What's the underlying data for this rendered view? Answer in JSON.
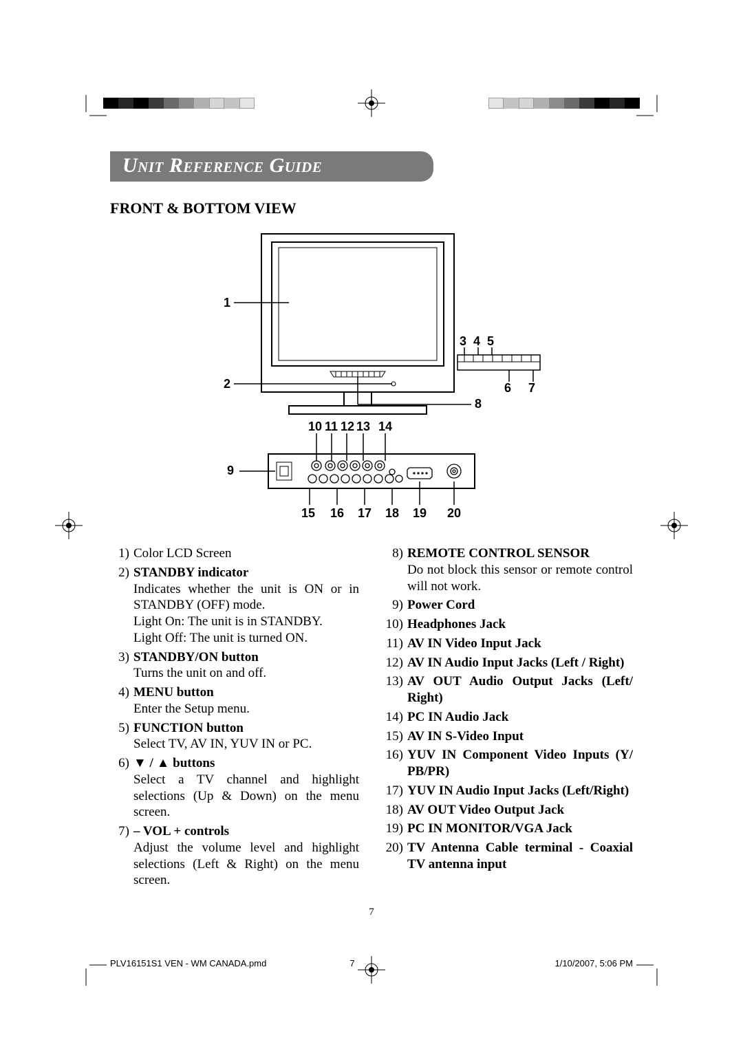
{
  "header": {
    "title": "Unit Reference Guide"
  },
  "subheading": "FRONT & BOTTOM VIEW",
  "page_number": "7",
  "footer": {
    "filename": "PLV16151S1 VEN - WM CANADA.pmd",
    "page": "7",
    "date": "1/10/2007, 5:06 PM"
  },
  "colors": {
    "header_bg": "#7a7a7a",
    "header_text": "#ffffff",
    "bar": [
      "#000000",
      "#d83b3b",
      "#e8e84a",
      "#4fd84f",
      "#3fd8d8",
      "#3b3bd8",
      "#d83bd8",
      "#ffffff",
      "#000000",
      "#d83b3b",
      "#e8e84a",
      "#4fd84f",
      "#3fd8d8",
      "#3b3bd8",
      "#d83bd8",
      "#ffffff"
    ]
  },
  "diagram": {
    "top_labels": [
      "1",
      "2",
      "3",
      "4",
      "5",
      "6",
      "7",
      "8",
      "9",
      "10",
      "11",
      "12",
      "13",
      "14",
      "15",
      "16",
      "17",
      "18",
      "19",
      "20"
    ]
  },
  "left_items": [
    {
      "n": "1)",
      "title": "",
      "text": "Color LCD Screen"
    },
    {
      "n": "2)",
      "title": "STANDBY indicator",
      "text": "Indicates whether the unit is ON or in STANDBY (OFF) mode.\nLight On: The unit is in STANDBY.\nLight Off: The unit is turned ON."
    },
    {
      "n": "3)",
      "title": "STANDBY/ON button",
      "text": "Turns the unit on and off."
    },
    {
      "n": "4)",
      "title": "MENU button",
      "text": "Enter the Setup menu."
    },
    {
      "n": "5)",
      "title": "FUNCTION button",
      "text": "Select TV, AV IN, YUV IN or PC."
    },
    {
      "n": "6)",
      "title": "▼ / ▲  buttons",
      "text": "Select a TV channel and highlight selections (Up & Down) on the menu screen."
    },
    {
      "n": "7)",
      "title": "– VOL + controls",
      "text": "Adjust the volume level and highlight selections (Left & Right) on the menu screen."
    }
  ],
  "right_items": [
    {
      "n": "8)",
      "title": "REMOTE CONTROL SENSOR",
      "text": "Do not block this sensor or remote control will not work."
    },
    {
      "n": "9)",
      "title": "Power Cord",
      "text": ""
    },
    {
      "n": "10)",
      "title": "Headphones Jack",
      "text": ""
    },
    {
      "n": "11)",
      "title": "AV IN Video Input Jack",
      "text": ""
    },
    {
      "n": "12)",
      "title": "AV IN Audio Input Jacks (Left / Right)",
      "text": ""
    },
    {
      "n": "13)",
      "title": "AV OUT Audio Output Jacks (Left/ Right)",
      "text": ""
    },
    {
      "n": "14)",
      "title": "PC IN Audio Jack",
      "text": ""
    },
    {
      "n": "15)",
      "title": "AV IN S-Video Input",
      "text": ""
    },
    {
      "n": "16)",
      "title": "YUV IN Component Video Inputs  (Y/ PB/PR)",
      "text": ""
    },
    {
      "n": "17)",
      "title": "YUV IN Audio Input Jacks (Left/Right)",
      "text": ""
    },
    {
      "n": "18)",
      "title": "AV OUT Video Output Jack",
      "text": ""
    },
    {
      "n": "19)",
      "title": "PC IN MONITOR/VGA Jack",
      "text": ""
    },
    {
      "n": "20)",
      "title": "TV Antenna Cable terminal - Coaxial TV antenna input",
      "text": ""
    }
  ]
}
